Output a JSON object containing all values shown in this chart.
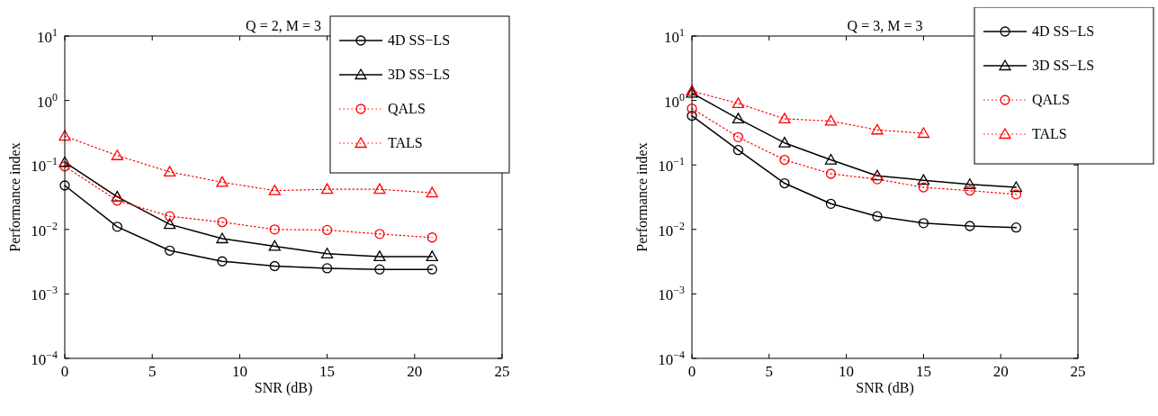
{
  "chart_data": [
    {
      "type": "line",
      "title": "Q = 2, M = 3",
      "xlabel": "SNR (dB)",
      "ylabel": "Performance index",
      "log": "y",
      "legend": "top right",
      "grid": false,
      "xlim": [
        0,
        25
      ],
      "xticks": [
        0,
        5,
        10,
        15,
        20,
        25
      ],
      "ylim": [
        0.0001,
        10
      ],
      "yticks": [
        {
          "value": 0.0001,
          "label": "10$^{−4}$"
        },
        {
          "value": 0.001,
          "label": "10$^{−3}$"
        },
        {
          "value": 0.01,
          "label": "10$^{−2}$"
        },
        {
          "value": 0.1,
          "label": "10$^{−1}$"
        },
        {
          "value": 1,
          "label": "10$^{0}$"
        },
        {
          "value": 10,
          "label": "10$^{1}$"
        }
      ],
      "x": [
        0,
        3,
        6,
        9,
        12,
        15,
        18,
        21
      ],
      "series": [
        {
          "name": "4D SS−LS",
          "color": "#000000",
          "marker": "circle",
          "line_style": "solid",
          "values": [
            0.048,
            0.011,
            0.0047,
            0.0032,
            0.0027,
            0.0025,
            0.0024,
            0.0024
          ]
        },
        {
          "name": "3D SS−LS",
          "color": "#000000",
          "marker": "triangle",
          "line_style": "solid",
          "values": [
            0.11,
            0.032,
            0.012,
            0.0072,
            0.0055,
            0.0042,
            0.0038,
            0.0038
          ]
        },
        {
          "name": "QALS",
          "color": "#ff0000",
          "marker": "circle",
          "line_style": "dotted",
          "values": [
            0.095,
            0.028,
            0.016,
            0.013,
            0.01,
            0.0098,
            0.0085,
            0.0075
          ]
        },
        {
          "name": "TALS",
          "color": "#ff0000",
          "marker": "triangle",
          "line_style": "dotted",
          "values": [
            0.28,
            0.14,
            0.078,
            0.054,
            0.04,
            0.042,
            0.042,
            0.037
          ]
        }
      ]
    },
    {
      "type": "line",
      "title": "Q = 3, M = 3",
      "xlabel": "SNR (dB)",
      "ylabel": "Performance index",
      "log": "y",
      "legend": "top right",
      "grid": false,
      "xlim": [
        0,
        25
      ],
      "xticks": [
        0,
        5,
        10,
        15,
        20,
        25
      ],
      "ylim": [
        0.0001,
        10
      ],
      "yticks": [
        {
          "value": 0.0001,
          "label": "10$^{−4}$"
        },
        {
          "value": 0.001,
          "label": "10$^{−3}$"
        },
        {
          "value": 0.01,
          "label": "10$^{−2}$"
        },
        {
          "value": 0.1,
          "label": "10$^{−1}$"
        },
        {
          "value": 1,
          "label": "10$^{0}$"
        },
        {
          "value": 10,
          "label": "10$^{1}$"
        }
      ],
      "x": [
        0,
        3,
        6,
        9,
        12,
        15,
        18,
        21
      ],
      "series": [
        {
          "name": "4D SS−LS",
          "color": "#000000",
          "marker": "circle",
          "line_style": "solid",
          "values": [
            0.58,
            0.17,
            0.052,
            0.025,
            0.016,
            0.0125,
            0.0113,
            0.0107
          ]
        },
        {
          "name": "3D SS−LS",
          "color": "#000000",
          "marker": "triangle",
          "line_style": "solid",
          "values": [
            1.3,
            0.52,
            0.22,
            0.12,
            0.068,
            0.058,
            0.05,
            0.045
          ]
        },
        {
          "name": "QALS",
          "color": "#ff0000",
          "marker": "circle",
          "line_style": "dotted",
          "values": [
            0.75,
            0.27,
            0.12,
            0.073,
            0.06,
            0.045,
            0.04,
            0.035
          ]
        },
        {
          "name": "TALS",
          "color": "#ff0000",
          "marker": "triangle",
          "line_style": "dotted",
          "values": [
            1.4,
            0.9,
            0.52,
            0.48,
            0.35,
            0.31,
            null,
            null
          ]
        }
      ]
    }
  ]
}
